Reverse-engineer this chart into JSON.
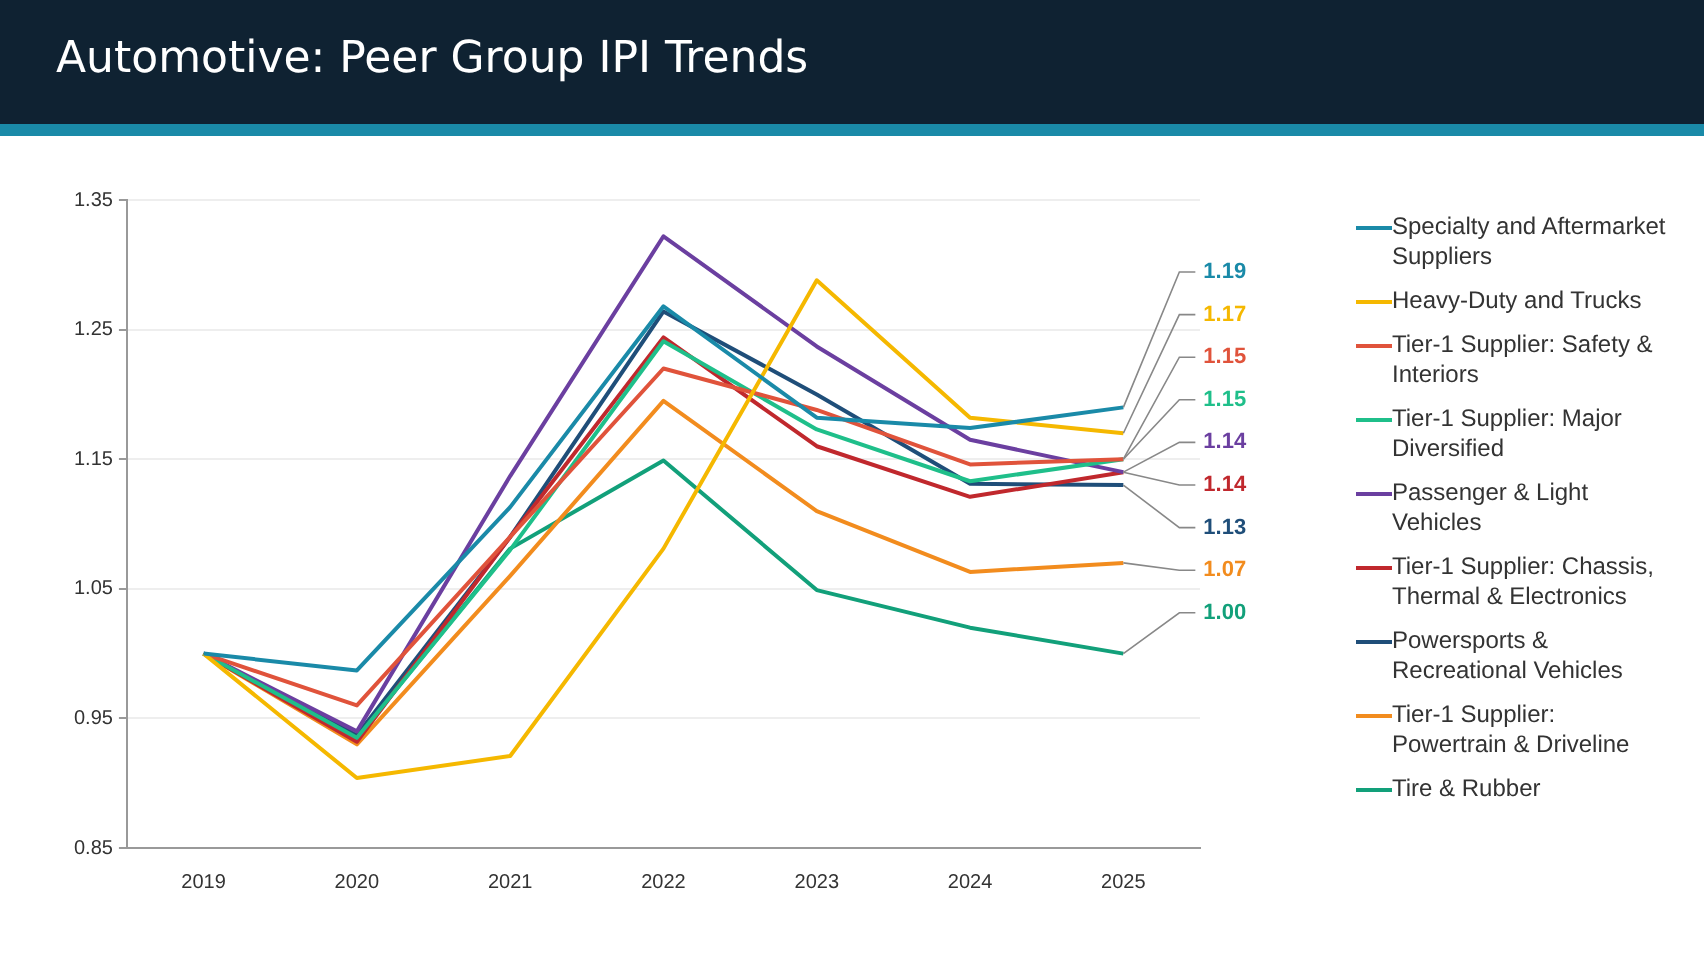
{
  "chart_data": {
    "type": "line",
    "title": "Automotive: Peer Group IPI Trends",
    "categories": [
      "2019",
      "2020",
      "2021",
      "2022",
      "2023",
      "2024",
      "2025"
    ],
    "series": [
      {
        "name": "Specialty and Aftermarket Suppliers",
        "color": "#1a8aa8",
        "values": [
          1.0,
          0.987,
          1.113,
          1.268,
          1.182,
          1.174,
          1.19
        ],
        "value_labels": [
          null,
          null,
          null,
          null,
          null,
          null,
          "1.19"
        ]
      },
      {
        "name": "Heavy-Duty and Trucks",
        "color": "#f5b800",
        "values": [
          1.0,
          0.904,
          0.921,
          1.081,
          1.288,
          1.182,
          1.17
        ],
        "value_labels": [
          null,
          null,
          null,
          null,
          null,
          null,
          "1.17"
        ]
      },
      {
        "name": "Tier-1 Supplier: Safety & Interiors",
        "color": "#e0533b",
        "values": [
          1.0,
          0.96,
          1.09,
          1.22,
          1.188,
          1.146,
          1.15
        ],
        "value_labels": [
          null,
          null,
          null,
          null,
          null,
          null,
          "1.15"
        ]
      },
      {
        "name": "Tier-1 Supplier: Major Diversified",
        "color": "#1fbf8a",
        "values": [
          1.0,
          0.935,
          1.08,
          1.241,
          1.173,
          1.133,
          1.15
        ],
        "value_labels": [
          null,
          null,
          null,
          null,
          null,
          null,
          "1.15"
        ]
      },
      {
        "name": "Passenger & Light Vehicles",
        "color": "#6b3fa0",
        "values": [
          1.0,
          0.94,
          1.137,
          1.322,
          1.237,
          1.165,
          1.14
        ],
        "value_labels": [
          null,
          null,
          null,
          null,
          null,
          null,
          "1.14"
        ]
      },
      {
        "name": "Tier-1 Supplier: Chassis, Thermal & Electronics",
        "color": "#c0282d",
        "values": [
          1.0,
          0.932,
          1.09,
          1.244,
          1.16,
          1.121,
          1.14
        ],
        "value_labels": [
          null,
          null,
          null,
          null,
          null,
          null,
          "1.14"
        ]
      },
      {
        "name": "Powersports & Recreational Vehicles",
        "color": "#1f4e79",
        "values": [
          1.0,
          0.937,
          1.09,
          1.264,
          1.2,
          1.131,
          1.13
        ],
        "value_labels": [
          null,
          null,
          null,
          null,
          null,
          null,
          "1.13"
        ]
      },
      {
        "name": "Tier-1 Supplier: Powertrain & Driveline",
        "color": "#f28c1e",
        "values": [
          1.0,
          0.93,
          1.06,
          1.195,
          1.11,
          1.063,
          1.07
        ],
        "value_labels": [
          null,
          null,
          null,
          null,
          null,
          null,
          "1.07"
        ]
      },
      {
        "name": "Tire & Rubber",
        "color": "#12a07a",
        "values": [
          1.0,
          0.935,
          1.081,
          1.149,
          1.049,
          1.02,
          1.0
        ],
        "value_labels": [
          null,
          null,
          null,
          null,
          null,
          null,
          "1.00"
        ]
      }
    ],
    "ylim": [
      0.85,
      1.35
    ],
    "yticks": [
      0.85,
      0.95,
      1.05,
      1.15,
      1.25,
      1.35
    ],
    "grid": "y",
    "legend": "right",
    "marker": "none",
    "line_style": "solid"
  }
}
